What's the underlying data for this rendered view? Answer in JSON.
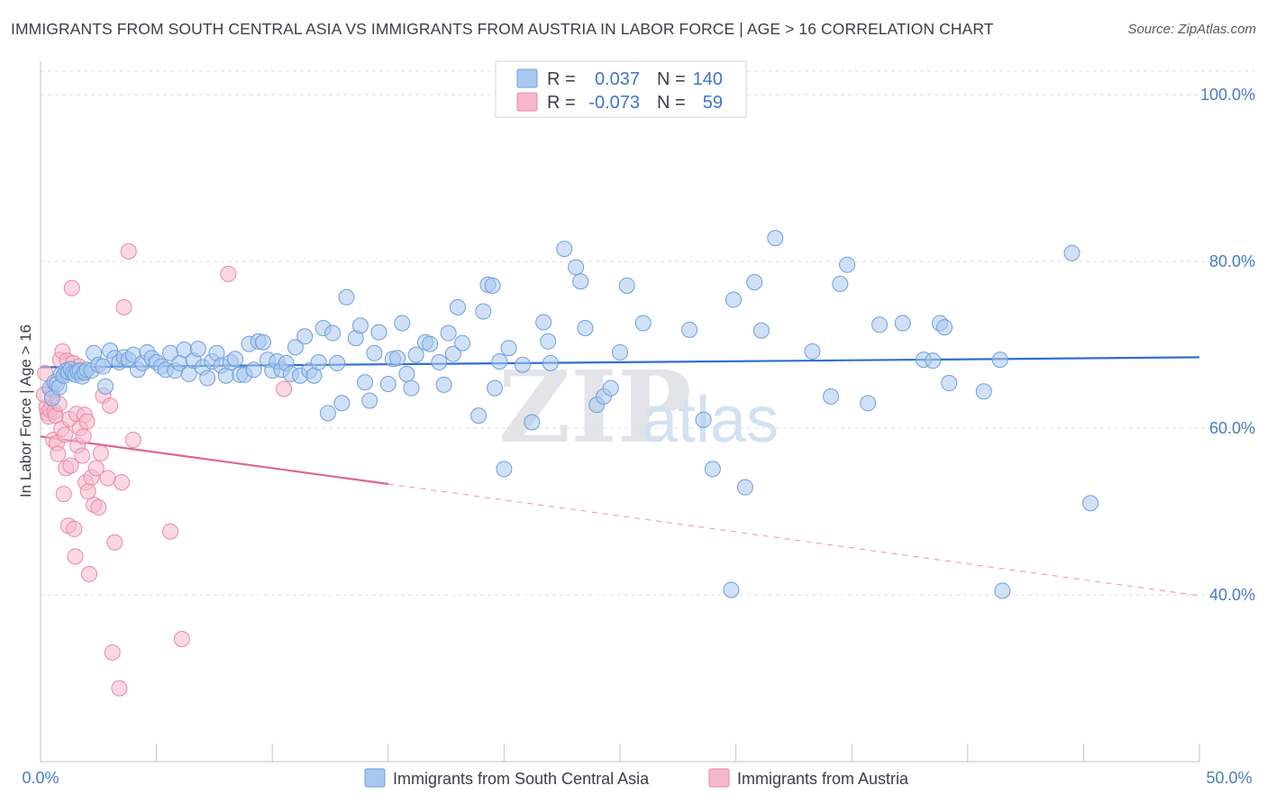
{
  "title": "IMMIGRANTS FROM SOUTH CENTRAL ASIA VS IMMIGRANTS FROM AUSTRIA IN LABOR FORCE | AGE > 16 CORRELATION CHART",
  "source": "Source: ZipAtlas.com",
  "watermark": {
    "zip": "ZIP",
    "atlas": "atlas"
  },
  "legend": {
    "rows": [
      {
        "r_label": "R =",
        "r_value": "0.037",
        "n_label": "N =",
        "n_value": "140",
        "color": "#a9c8ef"
      },
      {
        "r_label": "R =",
        "r_value": "-0.073",
        "n_label": "N =",
        "n_value": "59",
        "color": "#f5b8cb"
      }
    ]
  },
  "chart_data": {
    "type": "scatter",
    "title": "IMMIGRANTS FROM SOUTH CENTRAL ASIA VS IMMIGRANTS FROM AUSTRIA IN LABOR FORCE | AGE > 16 CORRELATION CHART",
    "xlabel": "",
    "ylabel": "In Labor Force | Age > 16",
    "xlim": [
      0,
      50
    ],
    "ylim": [
      20,
      104
    ],
    "x_tick_labels": [
      "0.0%",
      "50.0%"
    ],
    "y_ticks": [
      40,
      60,
      80,
      100
    ],
    "y_tick_labels": [
      "40.0%",
      "60.0%",
      "80.0%",
      "100.0%"
    ],
    "grid": true,
    "legend_position": "top-center",
    "series": [
      {
        "name": "Immigrants from South Central Asia",
        "color": "#a9c8ef",
        "stroke": "#6f9fdc",
        "trend": {
          "x": [
            0,
            50
          ],
          "y": [
            67.3,
            68.5
          ],
          "color": "#2f6fcc",
          "style": "solid"
        },
        "points": [
          [
            0.4,
            64.8
          ],
          [
            0.5,
            63.6
          ],
          [
            0.6,
            65.5
          ],
          [
            0.7,
            65.3
          ],
          [
            0.8,
            64.9
          ],
          [
            0.9,
            66.5
          ],
          [
            1.0,
            66.3
          ],
          [
            1.1,
            66.9
          ],
          [
            1.2,
            66.7
          ],
          [
            1.3,
            67.1
          ],
          [
            1.4,
            66.6
          ],
          [
            1.5,
            66.4
          ],
          [
            1.6,
            66.8
          ],
          [
            1.7,
            66.9
          ],
          [
            1.8,
            66.2
          ],
          [
            1.9,
            66.7
          ],
          [
            2.0,
            67.0
          ],
          [
            2.2,
            66.9
          ],
          [
            2.3,
            69.0
          ],
          [
            2.5,
            67.6
          ],
          [
            2.7,
            67.4
          ],
          [
            2.8,
            65.0
          ],
          [
            3.0,
            69.3
          ],
          [
            3.2,
            68.4
          ],
          [
            3.4,
            67.9
          ],
          [
            3.6,
            68.5
          ],
          [
            3.8,
            68.2
          ],
          [
            4.0,
            68.8
          ],
          [
            4.2,
            67.0
          ],
          [
            4.4,
            67.8
          ],
          [
            4.6,
            69.1
          ],
          [
            4.8,
            68.4
          ],
          [
            5.0,
            67.9
          ],
          [
            5.2,
            67.4
          ],
          [
            5.4,
            67.0
          ],
          [
            5.6,
            69.0
          ],
          [
            5.8,
            66.9
          ],
          [
            6.0,
            67.8
          ],
          [
            6.2,
            69.4
          ],
          [
            6.4,
            66.5
          ],
          [
            6.6,
            68.1
          ],
          [
            6.8,
            69.5
          ],
          [
            7.0,
            67.3
          ],
          [
            7.2,
            66.0
          ],
          [
            7.4,
            68.0
          ],
          [
            7.6,
            69.0
          ],
          [
            7.8,
            67.5
          ],
          [
            8.0,
            66.3
          ],
          [
            8.2,
            67.9
          ],
          [
            8.4,
            68.3
          ],
          [
            8.6,
            66.4
          ],
          [
            8.8,
            66.4
          ],
          [
            9.0,
            70.1
          ],
          [
            9.2,
            67.0
          ],
          [
            9.4,
            70.4
          ],
          [
            9.6,
            70.3
          ],
          [
            9.8,
            68.2
          ],
          [
            10.0,
            66.9
          ],
          [
            10.2,
            68.0
          ],
          [
            10.4,
            67.0
          ],
          [
            10.6,
            67.8
          ],
          [
            10.8,
            66.5
          ],
          [
            11.0,
            69.7
          ],
          [
            11.2,
            66.3
          ],
          [
            11.4,
            71.0
          ],
          [
            11.6,
            66.9
          ],
          [
            11.8,
            66.3
          ],
          [
            12.0,
            67.9
          ],
          [
            12.2,
            72.0
          ],
          [
            12.4,
            61.8
          ],
          [
            12.6,
            71.4
          ],
          [
            12.8,
            67.8
          ],
          [
            13.0,
            63.0
          ],
          [
            13.2,
            75.7
          ],
          [
            13.6,
            70.8
          ],
          [
            13.8,
            72.3
          ],
          [
            14.0,
            65.5
          ],
          [
            14.2,
            63.3
          ],
          [
            14.4,
            69.0
          ],
          [
            14.6,
            71.5
          ],
          [
            15.0,
            65.3
          ],
          [
            15.2,
            68.3
          ],
          [
            15.4,
            68.4
          ],
          [
            15.6,
            72.6
          ],
          [
            15.8,
            66.5
          ],
          [
            16.0,
            64.8
          ],
          [
            16.2,
            68.8
          ],
          [
            16.6,
            70.3
          ],
          [
            16.8,
            70.1
          ],
          [
            17.2,
            67.9
          ],
          [
            17.4,
            65.2
          ],
          [
            17.6,
            71.4
          ],
          [
            17.8,
            68.9
          ],
          [
            18.0,
            74.5
          ],
          [
            18.2,
            70.2
          ],
          [
            18.9,
            61.5
          ],
          [
            19.1,
            74.0
          ],
          [
            19.3,
            77.2
          ],
          [
            19.5,
            77.1
          ],
          [
            19.6,
            64.8
          ],
          [
            19.8,
            68.0
          ],
          [
            20.0,
            55.1
          ],
          [
            20.2,
            69.6
          ],
          [
            20.8,
            67.6
          ],
          [
            21.2,
            60.7
          ],
          [
            21.7,
            72.7
          ],
          [
            21.9,
            70.4
          ],
          [
            22.0,
            67.8
          ],
          [
            22.6,
            81.5
          ],
          [
            23.1,
            79.3
          ],
          [
            23.3,
            77.6
          ],
          [
            23.5,
            72.0
          ],
          [
            24.0,
            62.8
          ],
          [
            24.3,
            63.8
          ],
          [
            24.6,
            64.8
          ],
          [
            25.0,
            69.1
          ],
          [
            25.3,
            77.1
          ],
          [
            26.0,
            72.6
          ],
          [
            28.0,
            71.8
          ],
          [
            28.6,
            61.0
          ],
          [
            29.0,
            55.1
          ],
          [
            29.8,
            40.6
          ],
          [
            29.9,
            75.4
          ],
          [
            30.4,
            52.9
          ],
          [
            30.8,
            77.5
          ],
          [
            31.1,
            71.7
          ],
          [
            31.7,
            82.8
          ],
          [
            33.3,
            69.2
          ],
          [
            34.1,
            63.8
          ],
          [
            34.5,
            77.3
          ],
          [
            34.8,
            79.6
          ],
          [
            35.7,
            63.0
          ],
          [
            36.2,
            72.4
          ],
          [
            37.2,
            72.6
          ],
          [
            38.1,
            68.2
          ],
          [
            38.5,
            68.1
          ],
          [
            38.8,
            72.6
          ],
          [
            39.0,
            72.1
          ],
          [
            39.2,
            65.4
          ],
          [
            40.7,
            64.4
          ],
          [
            41.4,
            68.2
          ],
          [
            41.5,
            40.5
          ],
          [
            44.5,
            81.0
          ],
          [
            45.3,
            51.0
          ]
        ]
      },
      {
        "name": "Immigrants from Austria",
        "color": "#f5b8cb",
        "stroke": "#e88aa8",
        "trend": {
          "x": [
            0,
            15
          ],
          "y": [
            59.0,
            53.3
          ],
          "color": "#e0648f",
          "style": "solid",
          "extension": {
            "x": [
              15,
              50
            ],
            "y": [
              53.3,
              39.9
            ],
            "style": "dashed"
          }
        },
        "points": [
          [
            0.2,
            66.6
          ],
          [
            0.25,
            62.5
          ],
          [
            0.3,
            61.8
          ],
          [
            0.35,
            61.4
          ],
          [
            0.4,
            62.2
          ],
          [
            0.45,
            64.6
          ],
          [
            0.5,
            63.9
          ],
          [
            0.55,
            58.6
          ],
          [
            0.6,
            62.0
          ],
          [
            0.65,
            61.5
          ],
          [
            0.7,
            58.2
          ],
          [
            0.75,
            56.9
          ],
          [
            0.8,
            62.9
          ],
          [
            0.85,
            68.2
          ],
          [
            0.9,
            59.9
          ],
          [
            0.95,
            69.2
          ],
          [
            1.0,
            52.1
          ],
          [
            1.05,
            59.2
          ],
          [
            1.1,
            55.2
          ],
          [
            1.15,
            68.1
          ],
          [
            1.2,
            48.3
          ],
          [
            1.25,
            61.1
          ],
          [
            1.3,
            55.5
          ],
          [
            1.35,
            76.8
          ],
          [
            1.4,
            67.8
          ],
          [
            1.45,
            47.9
          ],
          [
            1.5,
            44.6
          ],
          [
            1.55,
            61.7
          ],
          [
            1.6,
            57.9
          ],
          [
            1.65,
            67.4
          ],
          [
            1.7,
            60.0
          ],
          [
            1.75,
            66.6
          ],
          [
            1.8,
            56.7
          ],
          [
            1.85,
            59.0
          ],
          [
            1.9,
            61.6
          ],
          [
            1.95,
            53.5
          ],
          [
            2.0,
            60.8
          ],
          [
            2.05,
            52.4
          ],
          [
            2.1,
            42.5
          ],
          [
            2.2,
            54.1
          ],
          [
            2.3,
            50.8
          ],
          [
            2.4,
            55.2
          ],
          [
            2.5,
            50.5
          ],
          [
            2.6,
            57.0
          ],
          [
            2.7,
            63.9
          ],
          [
            2.9,
            54.0
          ],
          [
            3.0,
            62.7
          ],
          [
            3.1,
            33.1
          ],
          [
            3.2,
            46.3
          ],
          [
            3.4,
            28.8
          ],
          [
            3.5,
            53.5
          ],
          [
            3.6,
            74.5
          ],
          [
            3.8,
            81.2
          ],
          [
            4.0,
            58.6
          ],
          [
            5.6,
            47.6
          ],
          [
            6.1,
            34.7
          ],
          [
            8.1,
            78.5
          ],
          [
            10.5,
            64.7
          ],
          [
            0.15,
            64.0
          ]
        ]
      }
    ]
  },
  "bottom_legend": [
    {
      "label": "Immigrants from South Central Asia",
      "color": "#a9c8ef"
    },
    {
      "label": "Immigrants from Austria",
      "color": "#f5b8cb"
    }
  ]
}
